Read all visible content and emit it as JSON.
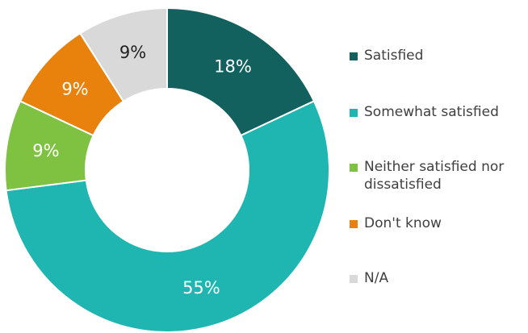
{
  "chart_data": {
    "type": "pie",
    "variant": "donut",
    "categories": [
      "Satisfied",
      "Somewhat satisfied",
      "Neither satisfied nor dissatisfied",
      "Don't know",
      "N/A"
    ],
    "values": [
      18,
      55,
      9,
      9,
      9
    ],
    "labels": [
      "18%",
      "55%",
      "9%",
      "9%",
      "9%"
    ],
    "unit": "%",
    "colors": [
      "#12615E",
      "#1FB5B0",
      "#7FC241",
      "#E8820C",
      "#D9D9D9"
    ],
    "label_colors": [
      "#ffffff",
      "#ffffff",
      "#ffffff",
      "#ffffff",
      "#222222"
    ],
    "start_angle_deg": 0,
    "direction": "clockwise",
    "legend_position": "right"
  }
}
